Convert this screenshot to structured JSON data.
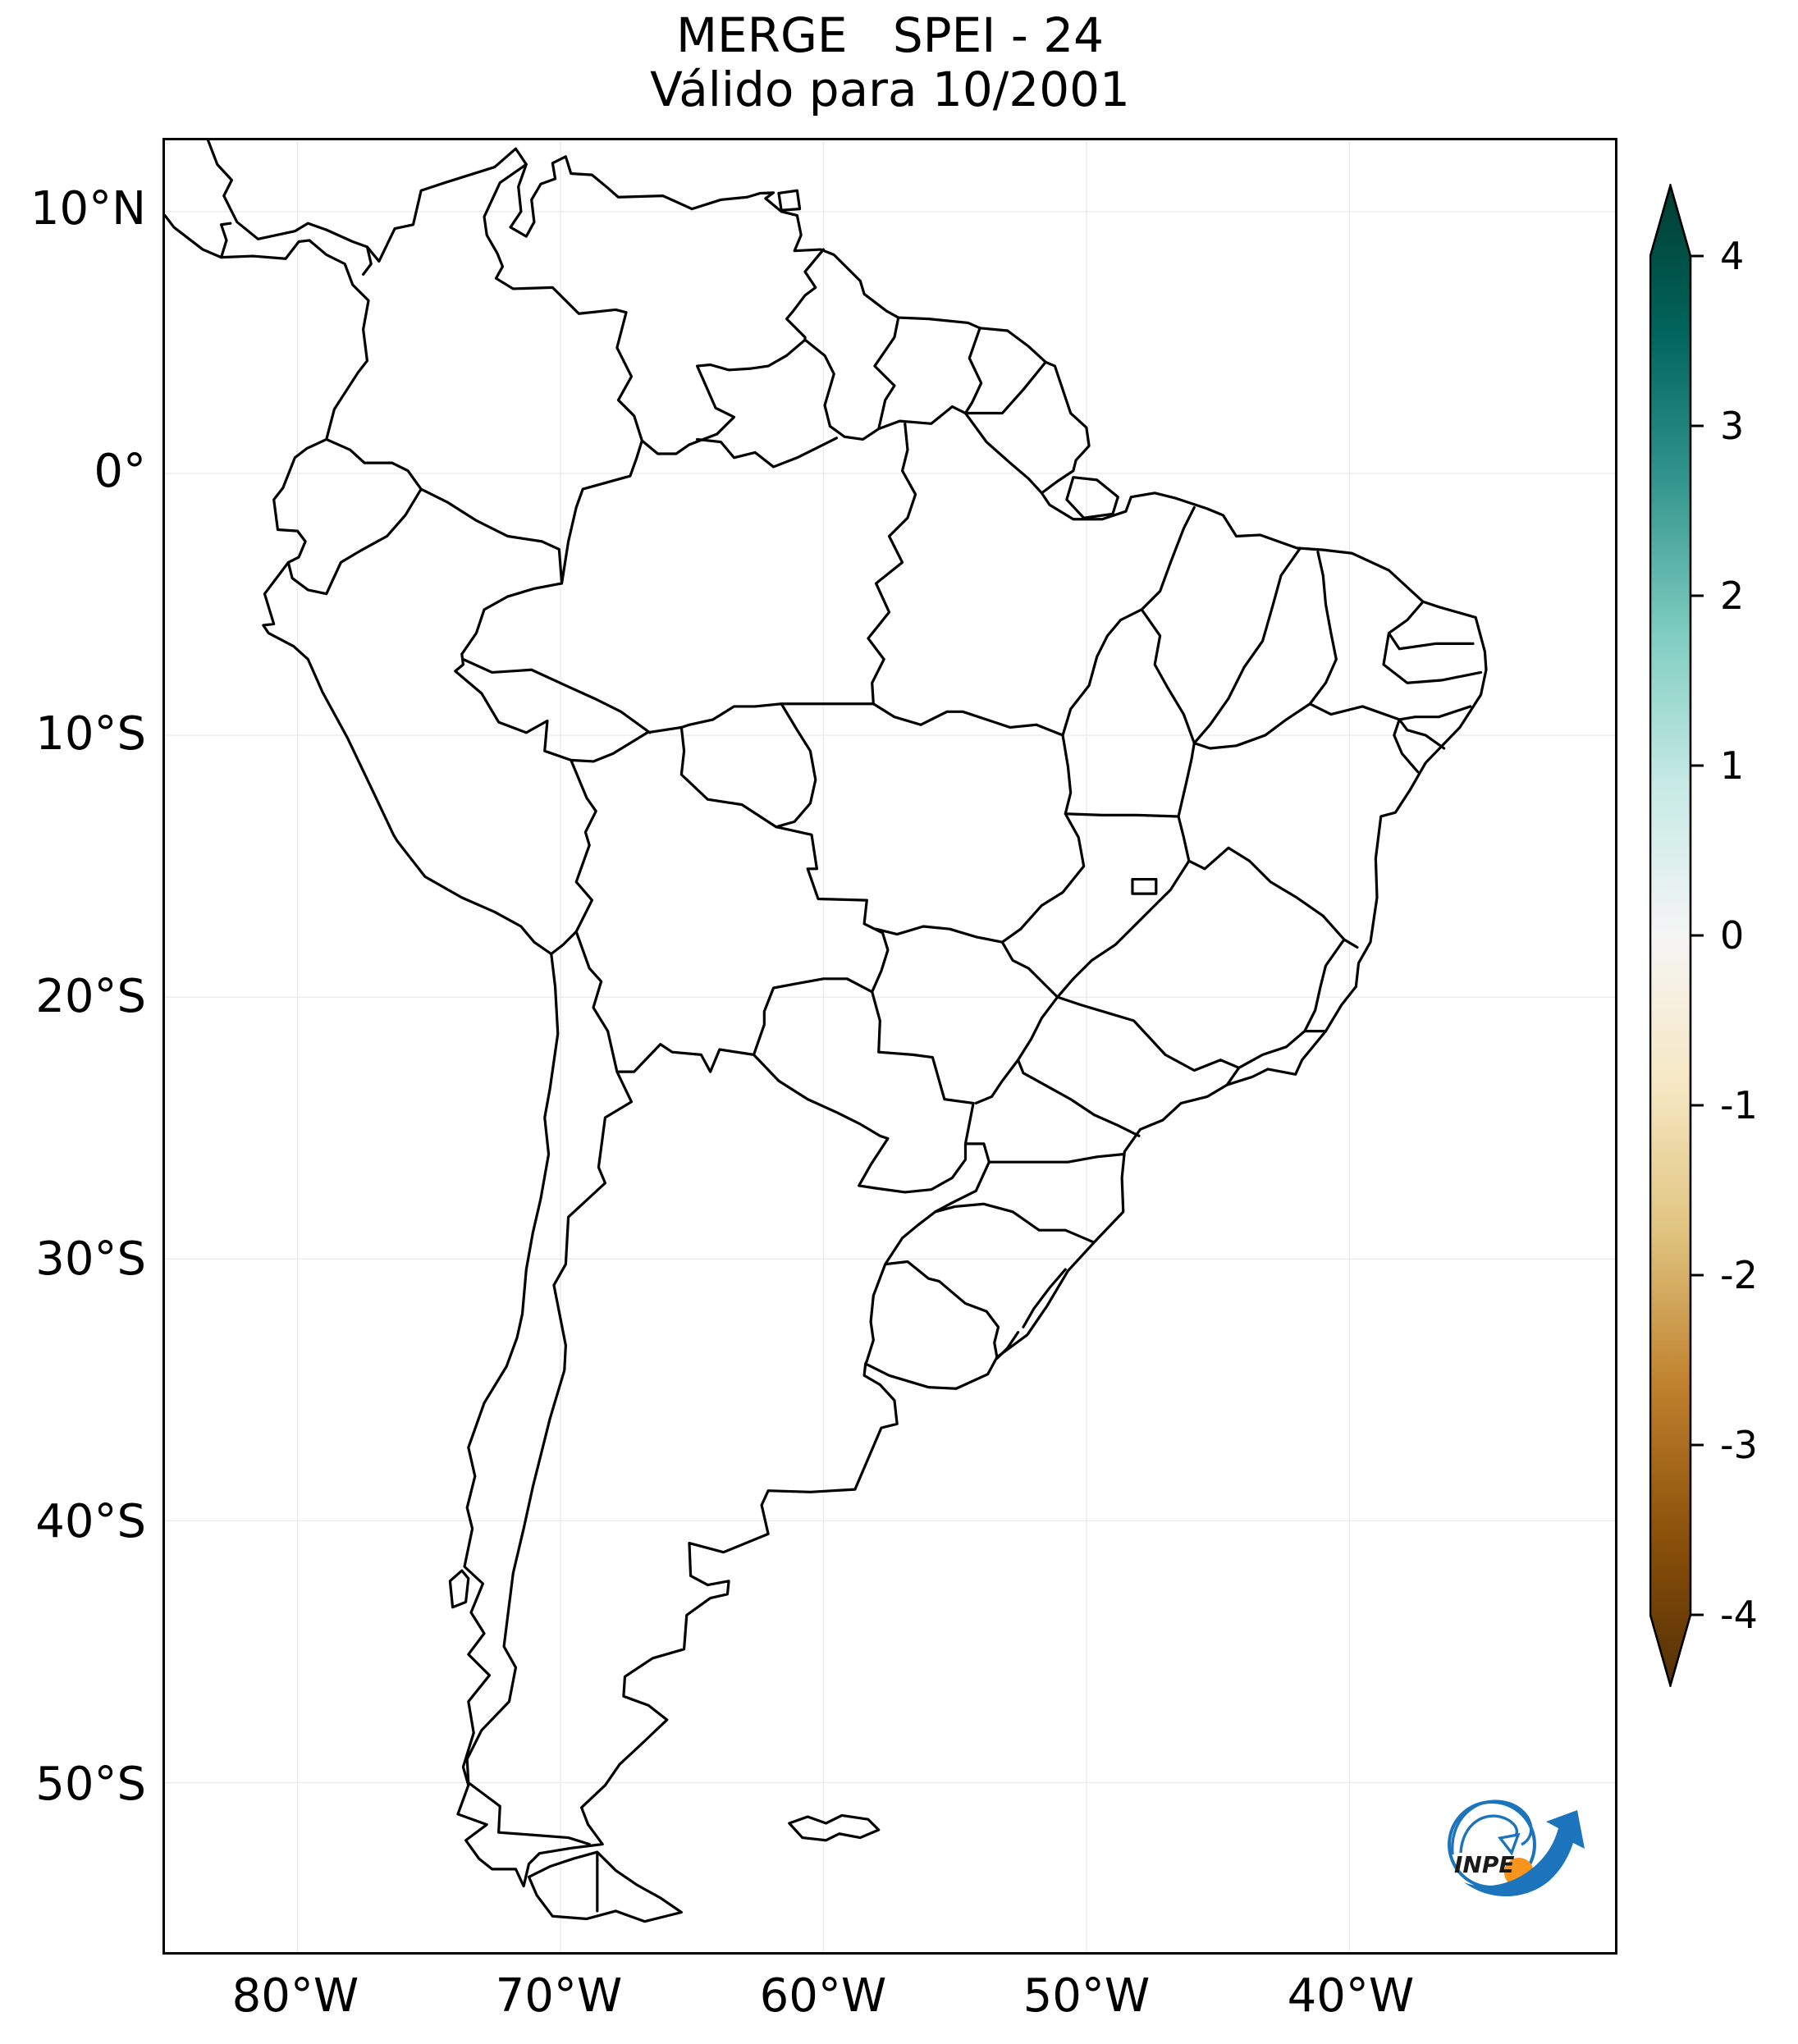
{
  "figure": {
    "title": "MERGE   SPEI - 24",
    "subtitle": "Válido para 10/2001",
    "background": "#ffffff"
  },
  "axes": {
    "lat_ticks": [
      "10°N",
      "0°",
      "10°S",
      "20°S",
      "30°S",
      "40°S",
      "50°S"
    ],
    "lon_ticks": [
      "80°W",
      "70°W",
      "60°W",
      "50°W",
      "40°W"
    ]
  },
  "map": {
    "line_color": "#000000",
    "grid_color": "#ebebeb",
    "frame_color": "#000000"
  },
  "colorbar": {
    "ticks": [
      "4",
      "3",
      "2",
      "1",
      "0",
      "-1",
      "-2",
      "-3",
      "-4"
    ],
    "gradient_top_to_bottom": [
      "#003c30",
      "#01665e",
      "#35978f",
      "#80cdc1",
      "#c7eae5",
      "#f5f5f5",
      "#f6e8c3",
      "#dfc27d",
      "#bf812d",
      "#8c510a",
      "#543005"
    ],
    "outline_color": "#000000"
  },
  "logo": {
    "text": "INPE",
    "blue": "#1c75bc",
    "orange": "#f7941d",
    "text_color": "#1a1a1a"
  }
}
